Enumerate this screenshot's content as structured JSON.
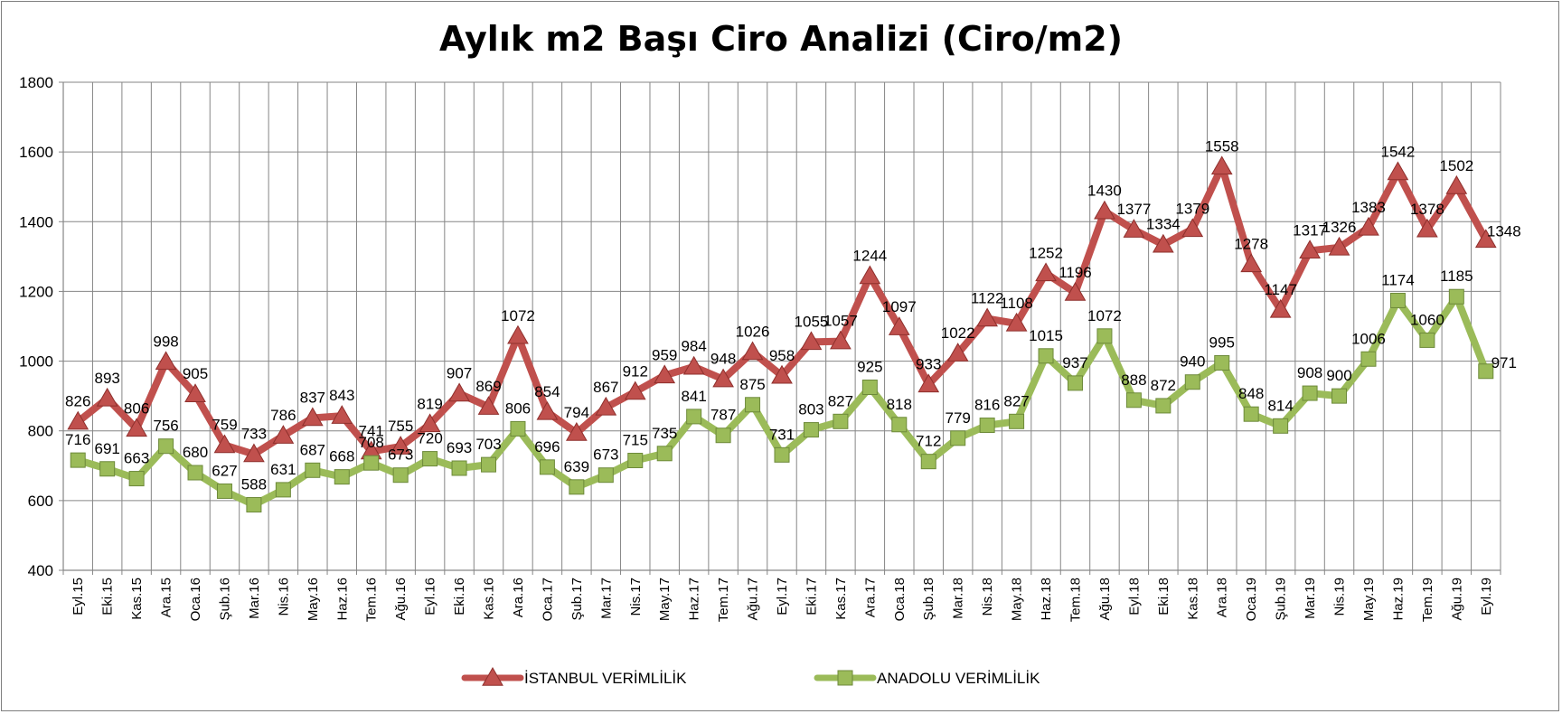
{
  "chart_data": {
    "type": "line",
    "title": "Aylık m2 Başı Ciro Analizi (Ciro/m2)",
    "xlabel": "",
    "ylabel": "",
    "ylim": [
      400,
      1800
    ],
    "yticks": [
      400,
      600,
      800,
      1000,
      1200,
      1400,
      1600,
      1800
    ],
    "grid": true,
    "legend_position": "bottom",
    "categories": [
      "Eyl.15",
      "Eki.15",
      "Kas.15",
      "Ara.15",
      "Oca.16",
      "Şub.16",
      "Mar.16",
      "Nis.16",
      "May.16",
      "Haz.16",
      "Tem.16",
      "Ağu.16",
      "Eyl.16",
      "Eki.16",
      "Kas.16",
      "Ara.16",
      "Oca.17",
      "Şub.17",
      "Mar.17",
      "Nis.17",
      "May.17",
      "Haz.17",
      "Tem.17",
      "Ağu.17",
      "Eyl.17",
      "Eki.17",
      "Kas.17",
      "Ara.17",
      "Oca.18",
      "Şub.18",
      "Mar.18",
      "Nis.18",
      "May.18",
      "Haz.18",
      "Tem.18",
      "Ağu.18",
      "Eyl.18",
      "Eki.18",
      "Kas.18",
      "Ara.18",
      "Oca.19",
      "Şub.19",
      "Mar.19",
      "Nis.19",
      "May.19",
      "Haz.19",
      "Tem.19",
      "Ağu.19",
      "Eyl.19"
    ],
    "series": [
      {
        "name": "İSTANBUL VERİMLİLİK",
        "color": "#c0504d",
        "marker": "triangle",
        "values": [
          826,
          893,
          806,
          998,
          905,
          759,
          733,
          786,
          837,
          843,
          741,
          755,
          819,
          907,
          869,
          1072,
          854,
          794,
          867,
          912,
          959,
          984,
          948,
          1026,
          958,
          1055,
          1057,
          1244,
          1097,
          933,
          1022,
          1122,
          1108,
          1252,
          1196,
          1430,
          1377,
          1334,
          1379,
          1558,
          1278,
          1147,
          1317,
          1326,
          1383,
          1542,
          1378,
          1502,
          1348
        ]
      },
      {
        "name": "ANADOLU VERİMLİLİK",
        "color": "#9bbb59",
        "marker": "square",
        "values": [
          716,
          691,
          663,
          756,
          680,
          627,
          588,
          631,
          687,
          668,
          708,
          673,
          720,
          693,
          703,
          806,
          696,
          639,
          673,
          715,
          735,
          841,
          787,
          875,
          731,
          803,
          827,
          925,
          818,
          712,
          779,
          816,
          827,
          1015,
          937,
          1072,
          888,
          872,
          940,
          995,
          848,
          814,
          908,
          900,
          1006,
          1174,
          1060,
          1185,
          971
        ]
      }
    ]
  }
}
